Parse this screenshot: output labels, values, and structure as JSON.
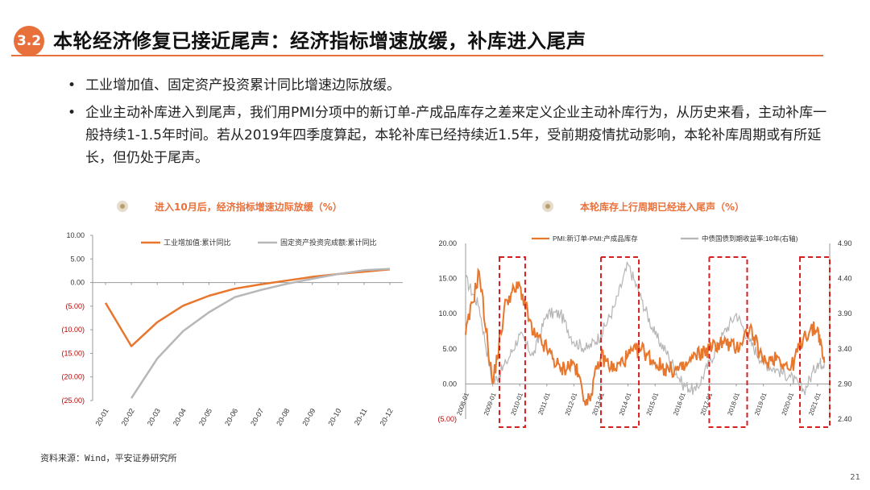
{
  "header": {
    "section_number": "3.2",
    "title": "本轮经济修复已接近尾声：经济指标增速放缓，补库进入尾声"
  },
  "bullets": [
    {
      "marker": "•",
      "text": "工业增加值、固定资产投资累计同比增速边际放缓。"
    },
    {
      "marker": "•",
      "text": "企业主动补库进入到尾声，我们用PMI分项中的新订单-产成品库存之差来定义企业主动补库行为，从历史来看，主动补库一般持续1-1.5年时间。若从2019年四季度算起，本轮补库已经持续近1.5年，受前期疫情扰动影响，本轮补库周期或有所延长，但仍处于尾声。"
    }
  ],
  "left_chart": {
    "subtitle": "进入10月后，经济指标增速边际放缓（%）",
    "legend": [
      "工业增加值:累计同比",
      "固定资产投资完成额:累计同比"
    ],
    "y_ticks": [
      "10.00",
      "5.00",
      "0.00",
      "(5.00)",
      "(10.00)",
      "(15.00)",
      "(20.00)",
      "(25.00)"
    ],
    "x_ticks": [
      "20-01",
      "20-02",
      "20-03",
      "20-04",
      "20-05",
      "20-06",
      "20-07",
      "20-08",
      "20-09",
      "20-10",
      "20-11",
      "20-12"
    ]
  },
  "right_chart": {
    "subtitle": "本轮库存上行周期已经进入尾声（%）",
    "legend": [
      "PMI:新订单-PMI:产成品库存",
      "中债国债到期收益率:10年(右轴)"
    ],
    "y_left_ticks": [
      "20.00",
      "15.00",
      "10.00",
      "5.00",
      "0.00",
      "(5.00)"
    ],
    "y_right_ticks": [
      "4.90",
      "4.40",
      "3.90",
      "3.40",
      "2.90",
      "2.40"
    ],
    "x_ticks": [
      "2008-01",
      "2009-01",
      "2010-01",
      "2011-01",
      "2012-01",
      "2013-01",
      "2014-01",
      "2015-01",
      "2016-01",
      "2017-01",
      "2018-01",
      "2019-01",
      "2020-01",
      "2021-01"
    ]
  },
  "chart_data": [
    {
      "type": "line",
      "title": "进入10月后，经济指标增速边际放缓（%）",
      "x": [
        "20-01",
        "20-02",
        "20-03",
        "20-04",
        "20-05",
        "20-06",
        "20-07",
        "20-08",
        "20-09",
        "20-10",
        "20-11",
        "20-12"
      ],
      "series": [
        {
          "name": "工业增加值:累计同比",
          "color": "#e8772e",
          "values": [
            -4.3,
            -13.5,
            -8.4,
            -4.9,
            -2.8,
            -1.3,
            -0.4,
            0.4,
            1.2,
            1.8,
            2.3,
            2.8
          ]
        },
        {
          "name": "固定资产投资完成额:累计同比",
          "color": "#b7b7b7",
          "values": [
            null,
            -24.5,
            -16.1,
            -10.3,
            -6.3,
            -3.1,
            -1.6,
            -0.3,
            0.8,
            1.8,
            2.6,
            2.9
          ]
        }
      ],
      "ylim": [
        -25,
        10
      ],
      "legend": "top"
    },
    {
      "type": "line",
      "title": "本轮库存上行周期已经进入尾声（%）",
      "x": [
        "2008-01",
        "2008-07",
        "2009-01",
        "2009-07",
        "2010-01",
        "2010-07",
        "2011-01",
        "2011-07",
        "2012-01",
        "2012-07",
        "2013-01",
        "2013-07",
        "2014-01",
        "2014-07",
        "2015-01",
        "2015-07",
        "2016-01",
        "2016-07",
        "2017-01",
        "2017-07",
        "2018-01",
        "2018-07",
        "2019-01",
        "2019-07",
        "2020-01",
        "2020-07",
        "2021-01",
        "2021-04"
      ],
      "series": [
        {
          "name": "PMI:新订单-PMI:产成品库存",
          "color": "#e8772e",
          "axis": "left",
          "values": [
            7,
            16,
            0,
            12,
            14,
            7,
            5,
            2,
            3,
            -3,
            4,
            2,
            4,
            5,
            3,
            2,
            2,
            4,
            5,
            6,
            5,
            8,
            3,
            4,
            2,
            7,
            8,
            3
          ]
        },
        {
          "name": "中债国债到期收益率:10年(右轴)",
          "color": "#b5b5b5",
          "axis": "right",
          "values": [
            4.4,
            4.0,
            2.9,
            3.2,
            3.6,
            3.3,
            3.9,
            3.9,
            3.5,
            3.4,
            3.6,
            4.0,
            4.6,
            4.1,
            3.6,
            3.3,
            2.9,
            2.8,
            3.2,
            3.6,
            3.9,
            3.5,
            3.2,
            3.1,
            3.0,
            2.8,
            3.2,
            3.2
          ]
        }
      ],
      "ylim": [
        -5,
        20
      ],
      "y2lim": [
        2.4,
        4.9
      ],
      "legend": "top"
    }
  ],
  "footer": {
    "source": "资料来源：Wind，平安证券研究所",
    "page_number": "21"
  }
}
